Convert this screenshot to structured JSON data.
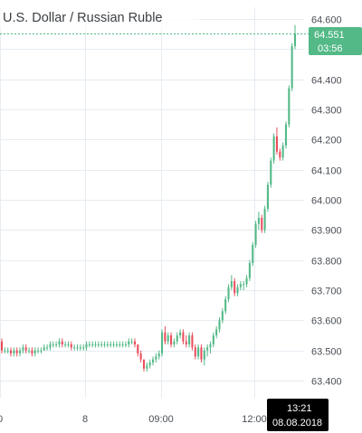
{
  "chart_data": {
    "type": "candlestick",
    "title": "U.S. Dollar / Russian Ruble",
    "y_ticks": [
      "64.600",
      "64.500",
      "64.400",
      "64.300",
      "64.200",
      "64.100",
      "64.000",
      "63.900",
      "63.800",
      "63.700",
      "63.600",
      "63.500",
      "63.400"
    ],
    "x_ticks": [
      "0",
      "8",
      "09:00",
      "12:00"
    ],
    "ylim": [
      63.35,
      64.62
    ],
    "last_price": "64.551",
    "countdown": "03:56",
    "crosshair_time": "13:21",
    "crosshair_date": "08.08.2018",
    "colors": {
      "up": "#53b987",
      "down": "#eb4d5c",
      "last_line": "#53b987",
      "crosshair_bg": "#000000"
    },
    "grid": true,
    "candles": [
      [
        63.53,
        63.54,
        63.49,
        63.5
      ],
      [
        63.5,
        63.51,
        63.49,
        63.5
      ],
      [
        63.5,
        63.51,
        63.49,
        63.5
      ],
      [
        63.5,
        63.51,
        63.48,
        63.49
      ],
      [
        63.49,
        63.51,
        63.48,
        63.5
      ],
      [
        63.5,
        63.51,
        63.48,
        63.49
      ],
      [
        63.49,
        63.51,
        63.48,
        63.5
      ],
      [
        63.5,
        63.52,
        63.49,
        63.51
      ],
      [
        63.51,
        63.52,
        63.49,
        63.5
      ],
      [
        63.5,
        63.51,
        63.49,
        63.5
      ],
      [
        63.5,
        63.51,
        63.48,
        63.49
      ],
      [
        63.49,
        63.51,
        63.48,
        63.5
      ],
      [
        63.5,
        63.51,
        63.49,
        63.5
      ],
      [
        63.5,
        63.51,
        63.49,
        63.5
      ],
      [
        63.5,
        63.52,
        63.5,
        63.51
      ],
      [
        63.51,
        63.52,
        63.5,
        63.51
      ],
      [
        63.51,
        63.53,
        63.5,
        63.52
      ],
      [
        63.52,
        63.53,
        63.51,
        63.52
      ],
      [
        63.52,
        63.53,
        63.51,
        63.52
      ],
      [
        63.52,
        63.54,
        63.51,
        63.53
      ],
      [
        63.53,
        63.54,
        63.51,
        63.52
      ],
      [
        63.52,
        63.53,
        63.51,
        63.52
      ],
      [
        63.52,
        63.53,
        63.51,
        63.52
      ],
      [
        63.52,
        63.53,
        63.5,
        63.51
      ],
      [
        63.51,
        63.52,
        63.5,
        63.51
      ],
      [
        63.51,
        63.52,
        63.5,
        63.51
      ],
      [
        63.51,
        63.52,
        63.5,
        63.51
      ],
      [
        63.51,
        63.52,
        63.5,
        63.51
      ],
      [
        63.51,
        63.53,
        63.5,
        63.52
      ],
      [
        63.52,
        63.53,
        63.51,
        63.52
      ],
      [
        63.52,
        63.53,
        63.51,
        63.52
      ],
      [
        63.52,
        63.53,
        63.51,
        63.52
      ],
      [
        63.52,
        63.53,
        63.51,
        63.52
      ],
      [
        63.52,
        63.53,
        63.51,
        63.52
      ],
      [
        63.52,
        63.53,
        63.51,
        63.52
      ],
      [
        63.52,
        63.53,
        63.51,
        63.52
      ],
      [
        63.52,
        63.53,
        63.51,
        63.52
      ],
      [
        63.52,
        63.53,
        63.51,
        63.52
      ],
      [
        63.52,
        63.53,
        63.51,
        63.52
      ],
      [
        63.52,
        63.53,
        63.51,
        63.52
      ],
      [
        63.52,
        63.53,
        63.51,
        63.52
      ],
      [
        63.52,
        63.53,
        63.51,
        63.52
      ],
      [
        63.52,
        63.54,
        63.51,
        63.53
      ],
      [
        63.53,
        63.54,
        63.52,
        63.53
      ],
      [
        63.53,
        63.54,
        63.51,
        63.52
      ],
      [
        63.52,
        63.52,
        63.48,
        63.49
      ],
      [
        63.49,
        63.5,
        63.46,
        63.47
      ],
      [
        63.47,
        63.47,
        63.43,
        63.44
      ],
      [
        63.44,
        63.46,
        63.43,
        63.45
      ],
      [
        63.45,
        63.47,
        63.44,
        63.46
      ],
      [
        63.46,
        63.48,
        63.45,
        63.47
      ],
      [
        63.47,
        63.49,
        63.46,
        63.48
      ],
      [
        63.48,
        63.5,
        63.47,
        63.49
      ],
      [
        63.49,
        63.57,
        63.48,
        63.56
      ],
      [
        63.56,
        63.58,
        63.52,
        63.53
      ],
      [
        63.53,
        63.56,
        63.52,
        63.55
      ],
      [
        63.55,
        63.56,
        63.51,
        63.52
      ],
      [
        63.52,
        63.54,
        63.51,
        63.53
      ],
      [
        63.53,
        63.56,
        63.52,
        63.55
      ],
      [
        63.55,
        63.57,
        63.54,
        63.56
      ],
      [
        63.56,
        63.57,
        63.52,
        63.53
      ],
      [
        63.53,
        63.55,
        63.51,
        63.52
      ],
      [
        63.52,
        63.56,
        63.51,
        63.55
      ],
      [
        63.55,
        63.56,
        63.5,
        63.51
      ],
      [
        63.51,
        63.52,
        63.47,
        63.48
      ],
      [
        63.48,
        63.52,
        63.47,
        63.51
      ],
      [
        63.51,
        63.52,
        63.46,
        63.47
      ],
      [
        63.47,
        63.51,
        63.45,
        63.5
      ],
      [
        63.5,
        63.52,
        63.48,
        63.51
      ],
      [
        63.51,
        63.53,
        63.49,
        63.52
      ],
      [
        63.52,
        63.56,
        63.51,
        63.55
      ],
      [
        63.55,
        63.58,
        63.54,
        63.57
      ],
      [
        63.57,
        63.61,
        63.56,
        63.6
      ],
      [
        63.6,
        63.64,
        63.59,
        63.63
      ],
      [
        63.63,
        63.68,
        63.62,
        63.67
      ],
      [
        63.67,
        63.72,
        63.66,
        63.71
      ],
      [
        63.71,
        63.75,
        63.7,
        63.73
      ],
      [
        63.73,
        63.74,
        63.68,
        63.69
      ],
      [
        63.69,
        63.72,
        63.68,
        63.71
      ],
      [
        63.71,
        63.73,
        63.7,
        63.72
      ],
      [
        63.72,
        63.73,
        63.7,
        63.72
      ],
      [
        63.72,
        63.75,
        63.71,
        63.74
      ],
      [
        63.74,
        63.8,
        63.73,
        63.79
      ],
      [
        63.79,
        63.86,
        63.78,
        63.85
      ],
      [
        63.85,
        63.93,
        63.84,
        63.92
      ],
      [
        63.92,
        63.96,
        63.9,
        63.94
      ],
      [
        63.94,
        63.95,
        63.89,
        63.9
      ],
      [
        63.9,
        63.98,
        63.89,
        63.97
      ],
      [
        63.97,
        64.06,
        63.96,
        64.05
      ],
      [
        64.05,
        64.14,
        64.04,
        64.13
      ],
      [
        64.13,
        64.22,
        64.12,
        64.21
      ],
      [
        64.21,
        64.24,
        64.15,
        64.16
      ],
      [
        64.16,
        64.17,
        64.13,
        64.14
      ],
      [
        64.14,
        64.19,
        64.13,
        64.18
      ],
      [
        64.18,
        64.26,
        64.17,
        64.25
      ],
      [
        64.25,
        64.38,
        64.24,
        64.37
      ],
      [
        64.37,
        64.52,
        64.36,
        64.51
      ],
      [
        64.51,
        64.58,
        64.5,
        64.551
      ]
    ]
  }
}
